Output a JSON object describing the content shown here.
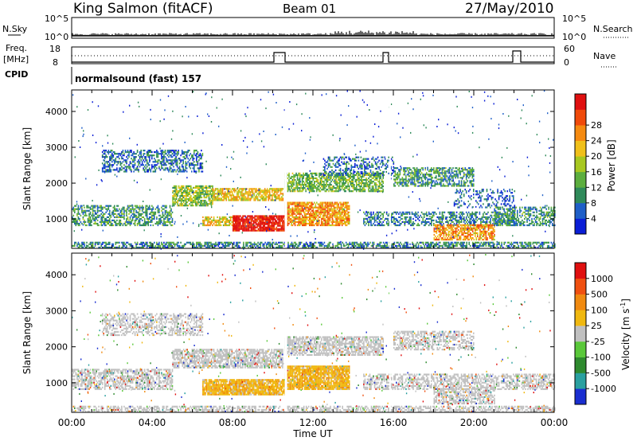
{
  "header": {
    "station": "King Salmon (fitACF)",
    "beam": "Beam 01",
    "date": "27/May/2010"
  },
  "top_panels": {
    "nsky_label": "N.Sky",
    "nsky_ticks": [
      "10^5",
      "10^0"
    ],
    "nsearch_label": "N.Search",
    "nsearch_ticks": [
      "10^5",
      "10^0"
    ],
    "freq_label": "Freq.",
    "freq_unit": "[MHz]",
    "freq_ticks": [
      "18",
      "8"
    ],
    "nave_label": "Nave",
    "nave_ticks": [
      "60",
      "0"
    ],
    "cpid_label": "CPID",
    "cpid_text": "normalsound (fast) 157"
  },
  "chart_data": [
    {
      "type": "heatmap",
      "name": "power",
      "ylabel": "Slant Range [km]",
      "xlabel": "Time UT",
      "ylim": [
        180,
        4600
      ],
      "xlim": [
        0,
        24
      ],
      "yticks": [
        "1000",
        "2000",
        "3000",
        "4000"
      ],
      "xticks": [
        "00:00",
        "04:00",
        "08:00",
        "12:00",
        "16:00",
        "20:00",
        "00:00"
      ],
      "colorbar": {
        "label": "Power [dB]",
        "ticks": [
          "4",
          "8",
          "12",
          "16",
          "20",
          "24",
          "28"
        ],
        "colors": [
          "#0a1ed6",
          "#1f5fc8",
          "#2f8a5a",
          "#5cae3e",
          "#a8c820",
          "#f0c01a",
          "#f58a10",
          "#f04a0a",
          "#e01010"
        ]
      },
      "bands": [
        {
          "t0": 0.0,
          "t1": 24.0,
          "r0": 180,
          "r1": 330,
          "level": 0.25,
          "density": 0.6
        },
        {
          "t0": 0.0,
          "t1": 5.0,
          "r0": 800,
          "r1": 1350,
          "level": 0.3,
          "density": 0.55
        },
        {
          "t0": 1.5,
          "t1": 6.5,
          "r0": 2300,
          "r1": 2900,
          "level": 0.2,
          "density": 0.5
        },
        {
          "t0": 5.0,
          "t1": 7.0,
          "r0": 1350,
          "r1": 1900,
          "level": 0.45,
          "density": 0.7
        },
        {
          "t0": 7.0,
          "t1": 10.5,
          "r0": 1500,
          "r1": 1850,
          "level": 0.6,
          "density": 0.75
        },
        {
          "t0": 6.5,
          "t1": 8.0,
          "r0": 800,
          "r1": 1050,
          "level": 0.6,
          "density": 0.75
        },
        {
          "t0": 8.0,
          "t1": 10.6,
          "r0": 650,
          "r1": 1100,
          "level": 0.95,
          "density": 0.9
        },
        {
          "t0": 10.6,
          "t1": 13.8,
          "r0": 800,
          "r1": 1450,
          "level": 0.7,
          "density": 0.8
        },
        {
          "t0": 10.6,
          "t1": 15.5,
          "r0": 1750,
          "r1": 2250,
          "level": 0.4,
          "density": 0.7
        },
        {
          "t0": 12.5,
          "t1": 16.0,
          "r0": 2200,
          "r1": 2700,
          "level": 0.2,
          "density": 0.4
        },
        {
          "t0": 16.0,
          "t1": 20.0,
          "r0": 1900,
          "r1": 2400,
          "level": 0.3,
          "density": 0.6
        },
        {
          "t0": 14.5,
          "t1": 22.0,
          "r0": 800,
          "r1": 1200,
          "level": 0.25,
          "density": 0.5
        },
        {
          "t0": 18.0,
          "t1": 21.0,
          "r0": 400,
          "r1": 850,
          "level": 0.7,
          "density": 0.7
        },
        {
          "t0": 21.0,
          "t1": 24.0,
          "r0": 800,
          "r1": 1300,
          "level": 0.3,
          "density": 0.5
        },
        {
          "t0": 19.0,
          "t1": 22.0,
          "r0": 1300,
          "r1": 1800,
          "level": 0.15,
          "density": 0.3
        }
      ]
    },
    {
      "type": "heatmap",
      "name": "velocity",
      "ylabel": "Slant Range [km]",
      "xlabel": "Time UT",
      "ylim": [
        180,
        4600
      ],
      "xlim": [
        0,
        24
      ],
      "yticks": [
        "1000",
        "2000",
        "3000",
        "4000"
      ],
      "xticks": [
        "00:00",
        "04:00",
        "08:00",
        "12:00",
        "16:00",
        "20:00",
        "00:00"
      ],
      "colorbar": {
        "label": "Velocity [m s",
        "label_sup": "-1",
        "label_close": "]",
        "ticks": [
          "1000",
          "500",
          "100",
          "25",
          "-25",
          "-100",
          "-500",
          "-1000"
        ],
        "colors": [
          "#1a2ed0",
          "#2aa0a0",
          "#2e8a2e",
          "#5ac83a",
          "#c0c0c0",
          "#f0b810",
          "#f08a10",
          "#f05010",
          "#e01010"
        ]
      },
      "bands": [
        {
          "t0": 0.0,
          "t1": 24.0,
          "r0": 180,
          "r1": 330,
          "kind": "grey",
          "density": 0.55
        },
        {
          "t0": 0.0,
          "t1": 5.0,
          "r0": 800,
          "r1": 1350,
          "kind": "grey",
          "density": 0.6
        },
        {
          "t0": 5.0,
          "t1": 10.5,
          "r0": 1400,
          "r1": 1900,
          "kind": "grey",
          "density": 0.7
        },
        {
          "t0": 1.5,
          "t1": 6.5,
          "r0": 2300,
          "r1": 2900,
          "kind": "grey",
          "density": 0.45
        },
        {
          "t0": 6.5,
          "t1": 10.6,
          "r0": 650,
          "r1": 1100,
          "kind": "orange",
          "density": 0.9
        },
        {
          "t0": 10.6,
          "t1": 13.8,
          "r0": 800,
          "r1": 1450,
          "kind": "orange",
          "density": 0.9
        },
        {
          "t0": 10.6,
          "t1": 15.5,
          "r0": 1750,
          "r1": 2250,
          "kind": "grey",
          "density": 0.7
        },
        {
          "t0": 16.0,
          "t1": 20.0,
          "r0": 1900,
          "r1": 2400,
          "kind": "grey",
          "density": 0.55
        },
        {
          "t0": 14.5,
          "t1": 24.0,
          "r0": 800,
          "r1": 1250,
          "kind": "grey",
          "density": 0.55
        },
        {
          "t0": 18.0,
          "t1": 21.0,
          "r0": 400,
          "r1": 850,
          "kind": "grey",
          "density": 0.6
        }
      ]
    }
  ]
}
